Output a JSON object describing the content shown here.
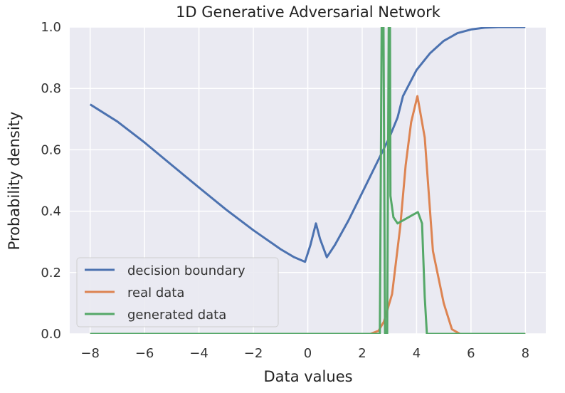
{
  "chart_data": {
    "type": "line",
    "title": "1D Generative Adversarial Network",
    "xlabel": "Data values",
    "ylabel": "Probability density",
    "xlim": [
      -8.75,
      8.75
    ],
    "ylim": [
      0,
      1.0
    ],
    "xticks": [
      -8,
      -6,
      -4,
      -2,
      0,
      2,
      4,
      6,
      8
    ],
    "xtick_labels": [
      "−8",
      "−6",
      "−4",
      "−2",
      "0",
      "2",
      "4",
      "6",
      "8"
    ],
    "yticks": [
      0.0,
      0.2,
      0.4,
      0.6,
      0.8,
      1.0
    ],
    "ytick_labels": [
      "0.0",
      "0.2",
      "0.4",
      "0.6",
      "0.8",
      "1.0"
    ],
    "grid": true,
    "legend_position": "lower-left",
    "series": [
      {
        "name": "decision boundary",
        "color": "#4c72b0",
        "points": [
          [
            -8,
            0.748
          ],
          [
            -7,
            0.692
          ],
          [
            -6,
            0.624
          ],
          [
            -5,
            0.55
          ],
          [
            -4,
            0.477
          ],
          [
            -3,
            0.405
          ],
          [
            -2,
            0.338
          ],
          [
            -1,
            0.276
          ],
          [
            -0.5,
            0.25
          ],
          [
            -0.1,
            0.235
          ],
          [
            0.1,
            0.29
          ],
          [
            0.3,
            0.36
          ],
          [
            0.45,
            0.31
          ],
          [
            0.7,
            0.25
          ],
          [
            1.0,
            0.29
          ],
          [
            1.5,
            0.37
          ],
          [
            2.0,
            0.46
          ],
          [
            2.5,
            0.55
          ],
          [
            3.0,
            0.64
          ],
          [
            3.3,
            0.705
          ],
          [
            3.5,
            0.775
          ],
          [
            4.0,
            0.86
          ],
          [
            4.5,
            0.915
          ],
          [
            5.0,
            0.955
          ],
          [
            5.5,
            0.98
          ],
          [
            6.0,
            0.992
          ],
          [
            6.5,
            0.998
          ],
          [
            7.0,
            1.0
          ],
          [
            8.0,
            1.0
          ]
        ]
      },
      {
        "name": "real data",
        "color": "#dd8452",
        "points": [
          [
            -8,
            0
          ],
          [
            2.3,
            0
          ],
          [
            2.6,
            0.01
          ],
          [
            2.8,
            0.04
          ],
          [
            3.1,
            0.13
          ],
          [
            3.4,
            0.35
          ],
          [
            3.6,
            0.55
          ],
          [
            3.8,
            0.69
          ],
          [
            4.03,
            0.775
          ],
          [
            4.3,
            0.64
          ],
          [
            4.6,
            0.27
          ],
          [
            5.0,
            0.1
          ],
          [
            5.3,
            0.015
          ],
          [
            5.6,
            0
          ],
          [
            8,
            0
          ]
        ]
      },
      {
        "name": "generated data",
        "color": "#55a868",
        "points": [
          [
            -8,
            0
          ],
          [
            2.65,
            0
          ],
          [
            2.72,
            1.06
          ],
          [
            2.78,
            1.06
          ],
          [
            2.84,
            0
          ],
          [
            2.92,
            0
          ],
          [
            2.98,
            1.06
          ],
          [
            3.02,
            1.06
          ],
          [
            3.04,
            0.45
          ],
          [
            3.15,
            0.38
          ],
          [
            3.3,
            0.36
          ],
          [
            3.6,
            0.375
          ],
          [
            3.9,
            0.39
          ],
          [
            4.05,
            0.397
          ],
          [
            4.2,
            0.36
          ],
          [
            4.3,
            0.12
          ],
          [
            4.38,
            0
          ],
          [
            8,
            0
          ]
        ]
      }
    ]
  }
}
